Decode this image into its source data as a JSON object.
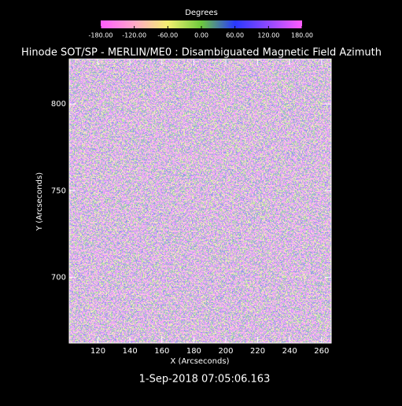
{
  "chart_data": {
    "type": "heatmap",
    "title": "Hinode SOT/SP - MERLIN/ME0 : Disambiguated Magnetic Field Azimuth",
    "colorbar_label": "Degrees",
    "clim": [
      -180,
      180
    ],
    "colorbar_ticks": [
      {
        "value": -180,
        "label": "-180.00"
      },
      {
        "value": -120,
        "label": "-120.00"
      },
      {
        "value": -60,
        "label": "-60.00"
      },
      {
        "value": 0,
        "label": "0.00"
      },
      {
        "value": 60,
        "label": "60.00"
      },
      {
        "value": 120,
        "label": "120.00"
      },
      {
        "value": 180,
        "label": "180.00"
      }
    ],
    "colormap": [
      "#ff5cff",
      "#ffa8c8",
      "#f4f070",
      "#6cc83c",
      "#2838ff",
      "#9048ff",
      "#ff5cff"
    ],
    "x_label": "X (Arcseconds)",
    "y_label": "Y (Arcseconds)",
    "xlim": [
      102,
      266
    ],
    "xticks": [
      120,
      140,
      160,
      180,
      200,
      220,
      240,
      260
    ],
    "ylim": [
      662,
      826
    ],
    "yticks": [
      700,
      750,
      800
    ],
    "footer": "1-Sep-2018 07:05:06.163"
  }
}
